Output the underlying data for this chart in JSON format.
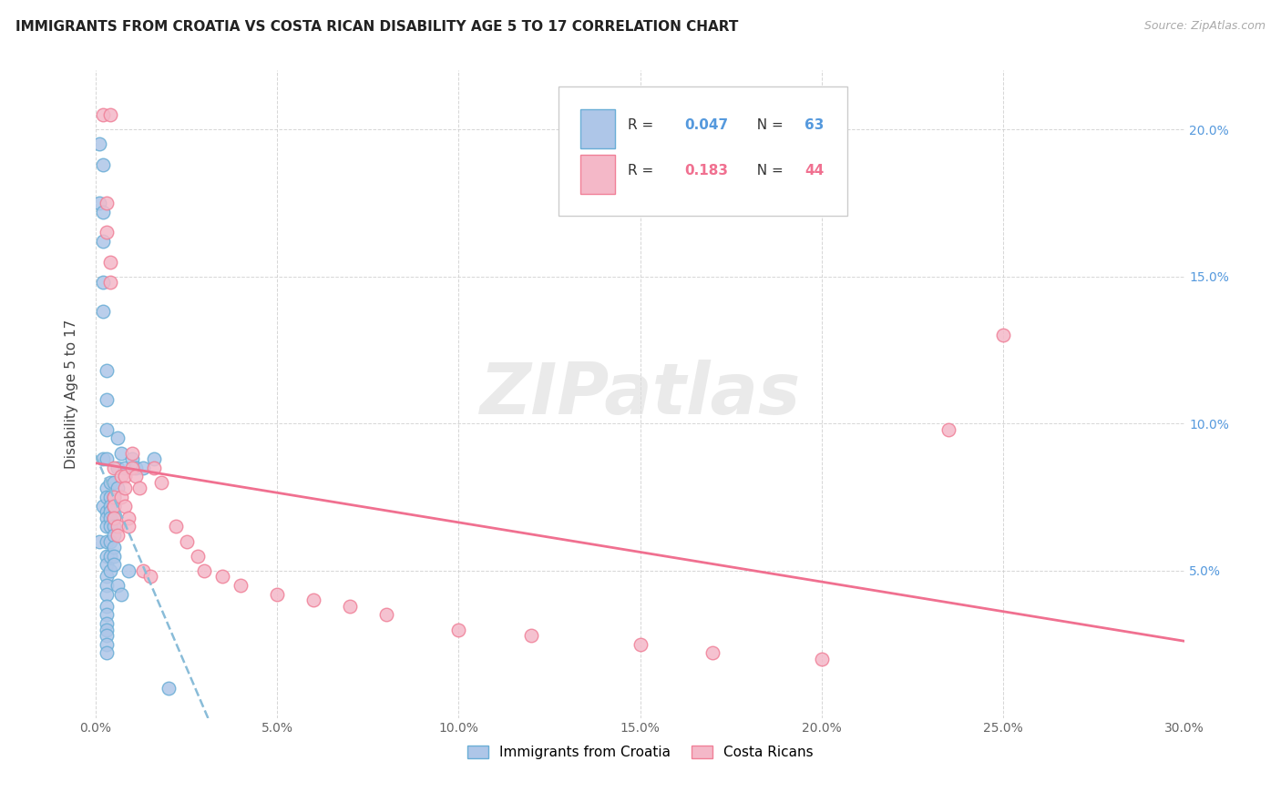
{
  "title": "IMMIGRANTS FROM CROATIA VS COSTA RICAN DISABILITY AGE 5 TO 17 CORRELATION CHART",
  "source": "Source: ZipAtlas.com",
  "ylabel": "Disability Age 5 to 17",
  "xlim": [
    0.0,
    0.3
  ],
  "ylim": [
    0.0,
    0.22
  ],
  "legend_labels": [
    "Immigrants from Croatia",
    "Costa Ricans"
  ],
  "r_croatia": 0.047,
  "n_croatia": 63,
  "r_costa_rica": 0.183,
  "n_costa_rica": 44,
  "color_croatia_face": "#aec6e8",
  "color_croatia_edge": "#6aaed6",
  "color_costa_rica_face": "#f4b8c8",
  "color_costa_rica_edge": "#f08098",
  "color_line_croatia": "#89bcd8",
  "color_line_costa_rica": "#f07090",
  "watermark_text": "ZIPatlas",
  "croatia_x": [
    0.001,
    0.001,
    0.001,
    0.002,
    0.002,
    0.002,
    0.002,
    0.002,
    0.002,
    0.002,
    0.003,
    0.003,
    0.003,
    0.003,
    0.003,
    0.003,
    0.003,
    0.003,
    0.003,
    0.003,
    0.003,
    0.003,
    0.003,
    0.003,
    0.003,
    0.003,
    0.003,
    0.003,
    0.003,
    0.003,
    0.003,
    0.003,
    0.004,
    0.004,
    0.004,
    0.004,
    0.004,
    0.004,
    0.004,
    0.004,
    0.004,
    0.005,
    0.005,
    0.005,
    0.005,
    0.005,
    0.005,
    0.005,
    0.005,
    0.005,
    0.006,
    0.006,
    0.006,
    0.006,
    0.007,
    0.007,
    0.008,
    0.009,
    0.01,
    0.011,
    0.013,
    0.016,
    0.02
  ],
  "croatia_y": [
    0.195,
    0.175,
    0.06,
    0.188,
    0.172,
    0.162,
    0.148,
    0.138,
    0.088,
    0.072,
    0.118,
    0.108,
    0.098,
    0.088,
    0.078,
    0.075,
    0.07,
    0.068,
    0.065,
    0.06,
    0.055,
    0.052,
    0.048,
    0.045,
    0.042,
    0.038,
    0.035,
    0.032,
    0.03,
    0.028,
    0.025,
    0.022,
    0.08,
    0.075,
    0.072,
    0.07,
    0.068,
    0.065,
    0.06,
    0.055,
    0.05,
    0.08,
    0.075,
    0.072,
    0.068,
    0.065,
    0.062,
    0.058,
    0.055,
    0.052,
    0.095,
    0.085,
    0.078,
    0.045,
    0.09,
    0.042,
    0.085,
    0.05,
    0.088,
    0.085,
    0.085,
    0.088,
    0.01
  ],
  "costa_rica_x": [
    0.002,
    0.003,
    0.003,
    0.004,
    0.004,
    0.004,
    0.005,
    0.005,
    0.005,
    0.005,
    0.006,
    0.006,
    0.007,
    0.007,
    0.008,
    0.008,
    0.008,
    0.009,
    0.009,
    0.01,
    0.01,
    0.011,
    0.012,
    0.013,
    0.015,
    0.016,
    0.018,
    0.022,
    0.025,
    0.028,
    0.03,
    0.035,
    0.04,
    0.05,
    0.06,
    0.07,
    0.08,
    0.1,
    0.12,
    0.15,
    0.17,
    0.2,
    0.235,
    0.25
  ],
  "costa_rica_y": [
    0.205,
    0.175,
    0.165,
    0.155,
    0.148,
    0.205,
    0.085,
    0.075,
    0.072,
    0.068,
    0.065,
    0.062,
    0.082,
    0.075,
    0.082,
    0.078,
    0.072,
    0.068,
    0.065,
    0.09,
    0.085,
    0.082,
    0.078,
    0.05,
    0.048,
    0.085,
    0.08,
    0.065,
    0.06,
    0.055,
    0.05,
    0.048,
    0.045,
    0.042,
    0.04,
    0.038,
    0.035,
    0.03,
    0.028,
    0.025,
    0.022,
    0.02,
    0.098,
    0.13
  ]
}
